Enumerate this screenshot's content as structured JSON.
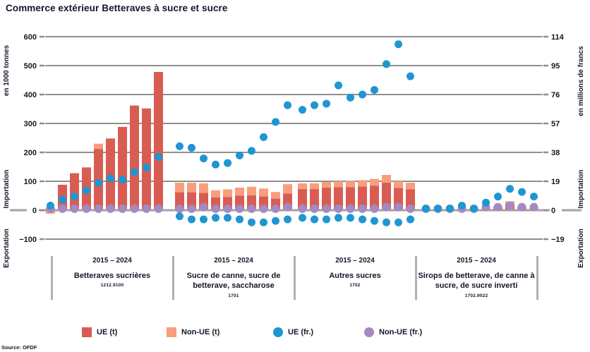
{
  "meta": {
    "title": "Commerce extérieur Betteraves à sucre et sucre",
    "source": "Source: OFDF"
  },
  "legend": {
    "items": [
      {
        "label": "UE (t)",
        "color": "#d95c52",
        "shape": "square"
      },
      {
        "label": "Non-UE (t)",
        "color": "#f89e7d",
        "shape": "square"
      },
      {
        "label": "UE (fr.)",
        "color": "#1e96d2",
        "shape": "circle"
      },
      {
        "label": "Non-UE (fr.)",
        "color": "#a689c2",
        "shape": "circle"
      }
    ]
  },
  "chart_data": {
    "type": "bar",
    "subtype": "stacked bars (tonnes) with scatter dots (francs), mirrored import/export axis",
    "title": "Commerce extérieur Betteraves à sucre et sucre",
    "axis_left": {
      "unit": "en 1000 tonnes",
      "ticks": [
        600,
        500,
        400,
        300,
        200,
        100,
        0,
        -100
      ],
      "import_label": "Importation",
      "export_label": "Exportation",
      "ylim": [
        -100,
        600
      ]
    },
    "axis_right": {
      "unit": "en millions de francs",
      "ticks": [
        114,
        95,
        76,
        57,
        38,
        19,
        0,
        -19
      ],
      "import_label": "Importation",
      "export_label": "Exportation",
      "ylim": [
        -19,
        114
      ]
    },
    "colors": {
      "ue_t": "#d95c52",
      "non_ue_t": "#f89e7d",
      "ue_fr": "#1e96d2",
      "non_ue_fr": "#a689c2",
      "grid": "#8f8f8f",
      "zero_line": "#a3a3a3",
      "text": "#15152a",
      "separator": "#b0b0b0"
    },
    "years_per_group": 10,
    "groups": [
      {
        "period": "2015 – 2024",
        "name": "Betteraves sucrières",
        "code": "1212.9100",
        "ue_t": [
          8,
          88,
          128,
          148,
          212,
          248,
          288,
          362,
          352,
          478
        ],
        "non_ue_t": [
          0,
          0,
          0,
          0,
          18,
          0,
          0,
          0,
          0,
          0
        ],
        "export_t": [
          12,
          0,
          0,
          0,
          0,
          0,
          0,
          0,
          0,
          0
        ],
        "ue_fr": [
          3,
          7,
          9,
          13,
          18,
          21,
          20,
          25,
          28,
          35
        ],
        "non_ue_fr": [
          1,
          1,
          1,
          1,
          1,
          1,
          1,
          1,
          1,
          1
        ],
        "ue_fr_export": [
          0,
          0,
          0,
          0,
          0,
          0,
          0,
          0,
          0,
          0
        ]
      },
      {
        "period": "2015 – 2024",
        "name": "Sucre de canne, sucre de betterave, saccharose",
        "code": "1701",
        "ue_t": [
          62,
          62,
          60,
          44,
          46,
          50,
          52,
          48,
          40,
          58
        ],
        "non_ue_t": [
          33,
          33,
          33,
          25,
          26,
          28,
          29,
          27,
          23,
          32
        ],
        "export_t": [
          4,
          2,
          2,
          2,
          2,
          2,
          2,
          2,
          2,
          2
        ],
        "ue_fr": [
          42,
          41,
          34,
          30,
          31,
          36,
          39,
          48,
          58,
          69
        ],
        "non_ue_fr": [
          1,
          1,
          2,
          1,
          1,
          1,
          1,
          1,
          1,
          2
        ],
        "ue_fr_export": [
          -4,
          -6,
          -6,
          -5,
          -5,
          -6,
          -8,
          -8,
          -7,
          -6
        ]
      },
      {
        "period": "2015 – 2024",
        "name": "Autres sucres",
        "code": "1702",
        "ue_t": [
          73,
          73,
          78,
          80,
          80,
          82,
          85,
          95,
          77,
          72
        ],
        "non_ue_t": [
          20,
          20,
          20,
          20,
          22,
          22,
          23,
          27,
          23,
          23
        ],
        "export_t": [
          0,
          0,
          0,
          0,
          0,
          0,
          0,
          0,
          0,
          0
        ],
        "ue_fr": [
          66,
          69,
          70,
          82,
          74,
          76,
          79,
          96,
          109,
          88
        ],
        "non_ue_fr": [
          1,
          1,
          1,
          1,
          1,
          1,
          1,
          2,
          2,
          1
        ],
        "ue_fr_export": [
          -5,
          -6,
          -6,
          -5,
          -5,
          -6,
          -7,
          -8,
          -8,
          -6
        ]
      },
      {
        "period": "2015 – 2024",
        "name": "Sirops de betterave, de canne à sucre, de sucre inverti",
        "code": "1702.9022",
        "ue_t": [
          0,
          0,
          0,
          2,
          2,
          3,
          7,
          22,
          6,
          4
        ],
        "non_ue_t": [
          0,
          0,
          0,
          2,
          2,
          3,
          6,
          9,
          5,
          4
        ],
        "export_t": [
          0,
          0,
          0,
          0,
          0,
          0,
          0,
          0,
          0,
          0
        ],
        "ue_fr": [
          1,
          1,
          1,
          3,
          1,
          5,
          9,
          14,
          12,
          9
        ],
        "non_ue_fr": [
          1,
          1,
          1,
          1,
          1,
          2,
          2,
          3,
          2,
          2
        ],
        "ue_fr_export": [
          0,
          0,
          0,
          0,
          0,
          0,
          0,
          0,
          0,
          0
        ]
      }
    ]
  }
}
